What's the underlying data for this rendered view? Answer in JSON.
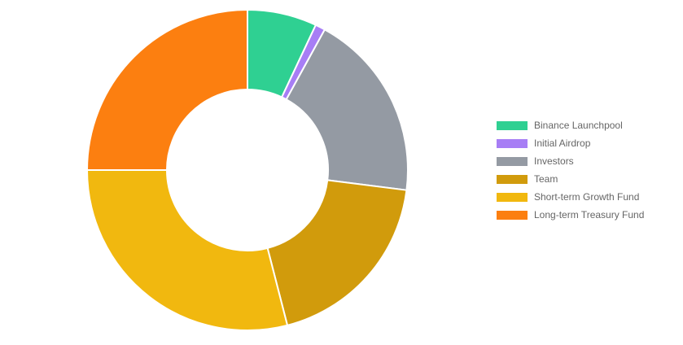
{
  "chart_data": {
    "type": "pie",
    "title": "",
    "categories": [
      "Binance Launchpool",
      "Initial Airdrop",
      "Investors",
      "Team",
      "Short-term Growth Fund",
      "Long-term Treasury Fund"
    ],
    "values": [
      7,
      1,
      19,
      19,
      29,
      25
    ],
    "colors": [
      "#2fd092",
      "#a77ef5",
      "#949aa3",
      "#d19b0c",
      "#f1b80f",
      "#fc7f10"
    ],
    "legend_position": "right"
  }
}
